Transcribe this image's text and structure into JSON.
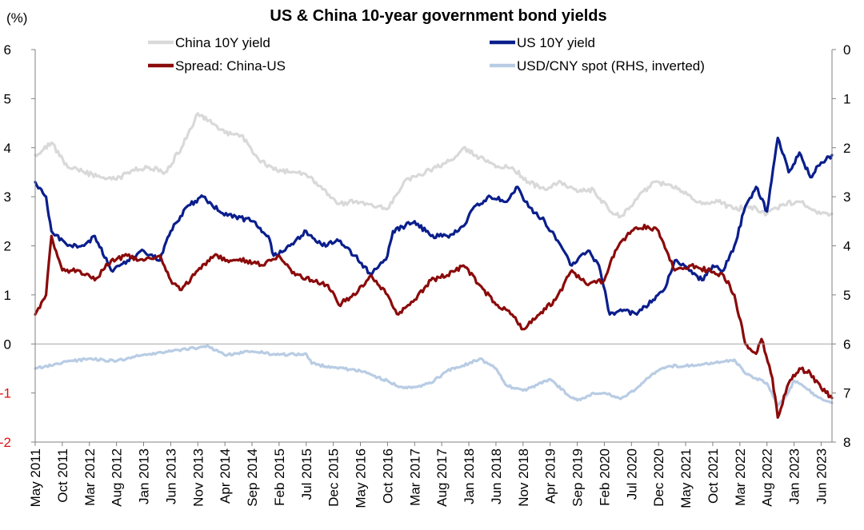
{
  "chart_data": {
    "type": "line",
    "title": "US & China 10-year government bond yields",
    "ylabel": "(%)",
    "ylim": [
      -2,
      6
    ],
    "y_ticks": [
      6,
      5,
      4,
      3,
      2,
      1,
      0,
      -1,
      -2
    ],
    "y_tick_labels": [
      "6",
      "5",
      "4",
      "3",
      "2",
      "1",
      "0",
      "-1",
      "-2"
    ],
    "y2lim": [
      0,
      8
    ],
    "y2_inverted": true,
    "y2_ticks": [
      0,
      1,
      2,
      3,
      4,
      5,
      6,
      7,
      8
    ],
    "y2_tick_labels": [
      "0",
      "1",
      "2",
      "3",
      "4",
      "5",
      "6",
      "7",
      "8"
    ],
    "xlim": [
      "2011-05",
      "2023-08"
    ],
    "x_ticks": [
      "2011-05",
      "2011-10",
      "2012-03",
      "2012-08",
      "2013-01",
      "2013-06",
      "2013-11",
      "2014-04",
      "2014-09",
      "2015-02",
      "2015-07",
      "2015-12",
      "2016-05",
      "2016-10",
      "2017-03",
      "2017-08",
      "2018-01",
      "2018-06",
      "2018-11",
      "2019-04",
      "2019-09",
      "2020-02",
      "2020-07",
      "2020-12",
      "2021-05",
      "2021-10",
      "2022-03",
      "2022-08",
      "2023-01",
      "2023-06"
    ],
    "x_tick_labels": [
      "May 2011",
      "Oct 2011",
      "Mar 2012",
      "Aug 2012",
      "Jan 2013",
      "Jun 2013",
      "Nov 2013",
      "Apr 2014",
      "Sep 2014",
      "Feb 2015",
      "Jul 2015",
      "Dec 2015",
      "May 2016",
      "Oct 2016",
      "Mar 2017",
      "Aug 2017",
      "Jan 2018",
      "Jun 2018",
      "Nov 2018",
      "Apr 2019",
      "Sep 2019",
      "Feb 2020",
      "Jul 2020",
      "Dec 2020",
      "May 2021",
      "Oct 2021",
      "Mar 2022",
      "Aug 2022",
      "Jan 2023",
      "Jun 2023"
    ],
    "grid": false,
    "legend": {
      "placement": "top",
      "columns": 2
    },
    "series": [
      {
        "name": "China 10Y yield",
        "axis": "left",
        "color": "#d9d9d9",
        "points": [
          [
            "2011-05",
            3.85
          ],
          [
            "2011-08",
            4.1
          ],
          [
            "2011-11",
            3.6
          ],
          [
            "2012-02",
            3.5
          ],
          [
            "2012-05",
            3.4
          ],
          [
            "2012-08",
            3.35
          ],
          [
            "2012-11",
            3.55
          ],
          [
            "2013-02",
            3.6
          ],
          [
            "2013-05",
            3.5
          ],
          [
            "2013-08",
            4.0
          ],
          [
            "2013-11",
            4.7
          ],
          [
            "2014-01",
            4.55
          ],
          [
            "2014-04",
            4.3
          ],
          [
            "2014-07",
            4.25
          ],
          [
            "2014-10",
            3.8
          ],
          [
            "2015-01",
            3.55
          ],
          [
            "2015-04",
            3.5
          ],
          [
            "2015-07",
            3.45
          ],
          [
            "2015-10",
            3.15
          ],
          [
            "2016-01",
            2.85
          ],
          [
            "2016-04",
            2.9
          ],
          [
            "2016-07",
            2.85
          ],
          [
            "2016-10",
            2.75
          ],
          [
            "2017-01",
            3.3
          ],
          [
            "2017-04",
            3.45
          ],
          [
            "2017-07",
            3.6
          ],
          [
            "2017-10",
            3.75
          ],
          [
            "2017-12",
            4.0
          ],
          [
            "2018-03",
            3.8
          ],
          [
            "2018-06",
            3.6
          ],
          [
            "2018-09",
            3.6
          ],
          [
            "2018-12",
            3.3
          ],
          [
            "2019-03",
            3.15
          ],
          [
            "2019-06",
            3.3
          ],
          [
            "2019-09",
            3.1
          ],
          [
            "2019-12",
            3.15
          ],
          [
            "2020-03",
            2.7
          ],
          [
            "2020-05",
            2.6
          ],
          [
            "2020-08",
            2.95
          ],
          [
            "2020-11",
            3.3
          ],
          [
            "2021-02",
            3.25
          ],
          [
            "2021-05",
            3.1
          ],
          [
            "2021-08",
            2.85
          ],
          [
            "2021-11",
            2.9
          ],
          [
            "2022-02",
            2.75
          ],
          [
            "2022-05",
            2.8
          ],
          [
            "2022-08",
            2.65
          ],
          [
            "2022-11",
            2.85
          ],
          [
            "2023-02",
            2.9
          ],
          [
            "2023-05",
            2.7
          ],
          [
            "2023-08",
            2.65
          ]
        ]
      },
      {
        "name": "US 10Y yield",
        "axis": "left",
        "color": "#0a1e8c",
        "points": [
          [
            "2011-05",
            3.3
          ],
          [
            "2011-07",
            3.0
          ],
          [
            "2011-08",
            2.3
          ],
          [
            "2011-11",
            2.0
          ],
          [
            "2012-02",
            2.0
          ],
          [
            "2012-04",
            2.2
          ],
          [
            "2012-07",
            1.5
          ],
          [
            "2012-10",
            1.7
          ],
          [
            "2013-01",
            1.9
          ],
          [
            "2013-04",
            1.7
          ],
          [
            "2013-06",
            2.3
          ],
          [
            "2013-09",
            2.8
          ],
          [
            "2013-12",
            3.0
          ],
          [
            "2014-03",
            2.7
          ],
          [
            "2014-06",
            2.6
          ],
          [
            "2014-09",
            2.5
          ],
          [
            "2014-12",
            2.2
          ],
          [
            "2015-01",
            1.8
          ],
          [
            "2015-04",
            2.0
          ],
          [
            "2015-07",
            2.3
          ],
          [
            "2015-10",
            2.0
          ],
          [
            "2016-01",
            2.1
          ],
          [
            "2016-04",
            1.8
          ],
          [
            "2016-07",
            1.4
          ],
          [
            "2016-10",
            1.8
          ],
          [
            "2016-11",
            2.3
          ],
          [
            "2017-03",
            2.5
          ],
          [
            "2017-06",
            2.2
          ],
          [
            "2017-09",
            2.2
          ],
          [
            "2017-12",
            2.4
          ],
          [
            "2018-02",
            2.8
          ],
          [
            "2018-05",
            3.0
          ],
          [
            "2018-08",
            2.9
          ],
          [
            "2018-10",
            3.2
          ],
          [
            "2018-12",
            2.8
          ],
          [
            "2019-03",
            2.5
          ],
          [
            "2019-06",
            2.0
          ],
          [
            "2019-08",
            1.6
          ],
          [
            "2019-11",
            1.9
          ],
          [
            "2020-01",
            1.6
          ],
          [
            "2020-03",
            0.6
          ],
          [
            "2020-05",
            0.7
          ],
          [
            "2020-08",
            0.6
          ],
          [
            "2020-11",
            0.9
          ],
          [
            "2021-01",
            1.1
          ],
          [
            "2021-03",
            1.7
          ],
          [
            "2021-06",
            1.5
          ],
          [
            "2021-08",
            1.3
          ],
          [
            "2021-10",
            1.6
          ],
          [
            "2021-12",
            1.5
          ],
          [
            "2022-02",
            2.0
          ],
          [
            "2022-04",
            2.8
          ],
          [
            "2022-06",
            3.2
          ],
          [
            "2022-08",
            2.7
          ],
          [
            "2022-10",
            4.2
          ],
          [
            "2022-12",
            3.5
          ],
          [
            "2023-02",
            3.9
          ],
          [
            "2023-04",
            3.4
          ],
          [
            "2023-06",
            3.7
          ],
          [
            "2023-08",
            3.85
          ]
        ]
      },
      {
        "name": "Spread: China-US",
        "axis": "left",
        "color": "#8b0a0a",
        "points": [
          [
            "2011-05",
            0.6
          ],
          [
            "2011-07",
            1.0
          ],
          [
            "2011-08",
            2.2
          ],
          [
            "2011-10",
            1.5
          ],
          [
            "2012-01",
            1.5
          ],
          [
            "2012-04",
            1.3
          ],
          [
            "2012-07",
            1.7
          ],
          [
            "2012-10",
            1.8
          ],
          [
            "2013-01",
            1.7
          ],
          [
            "2013-04",
            1.8
          ],
          [
            "2013-06",
            1.3
          ],
          [
            "2013-08",
            1.1
          ],
          [
            "2013-11",
            1.5
          ],
          [
            "2014-02",
            1.8
          ],
          [
            "2014-05",
            1.7
          ],
          [
            "2014-08",
            1.7
          ],
          [
            "2014-11",
            1.6
          ],
          [
            "2015-02",
            1.8
          ],
          [
            "2015-05",
            1.4
          ],
          [
            "2015-08",
            1.3
          ],
          [
            "2015-11",
            1.2
          ],
          [
            "2016-01",
            0.8
          ],
          [
            "2016-04",
            1.0
          ],
          [
            "2016-07",
            1.4
          ],
          [
            "2016-10",
            1.0
          ],
          [
            "2016-12",
            0.6
          ],
          [
            "2017-03",
            0.9
          ],
          [
            "2017-06",
            1.3
          ],
          [
            "2017-09",
            1.4
          ],
          [
            "2017-12",
            1.6
          ],
          [
            "2018-03",
            1.2
          ],
          [
            "2018-06",
            0.8
          ],
          [
            "2018-09",
            0.6
          ],
          [
            "2018-11",
            0.3
          ],
          [
            "2019-02",
            0.6
          ],
          [
            "2019-05",
            0.9
          ],
          [
            "2019-08",
            1.5
          ],
          [
            "2019-11",
            1.2
          ],
          [
            "2020-02",
            1.3
          ],
          [
            "2020-04",
            1.9
          ],
          [
            "2020-07",
            2.3
          ],
          [
            "2020-10",
            2.4
          ],
          [
            "2020-12",
            2.3
          ],
          [
            "2021-03",
            1.5
          ],
          [
            "2021-06",
            1.6
          ],
          [
            "2021-09",
            1.5
          ],
          [
            "2021-12",
            1.4
          ],
          [
            "2022-02",
            1.0
          ],
          [
            "2022-04",
            0.0
          ],
          [
            "2022-06",
            -0.2
          ],
          [
            "2022-07",
            0.1
          ],
          [
            "2022-09",
            -0.7
          ],
          [
            "2022-10",
            -1.5
          ],
          [
            "2022-12",
            -0.8
          ],
          [
            "2023-02",
            -0.5
          ],
          [
            "2023-04",
            -0.6
          ],
          [
            "2023-06",
            -0.9
          ],
          [
            "2023-08",
            -1.1
          ]
        ]
      },
      {
        "name": "USD/CNY spot (RHS, inverted)",
        "axis": "right",
        "color": "#b8cce4",
        "points": [
          [
            "2011-05",
            6.5
          ],
          [
            "2011-10",
            6.38
          ],
          [
            "2012-03",
            6.3
          ],
          [
            "2012-08",
            6.35
          ],
          [
            "2013-01",
            6.22
          ],
          [
            "2013-06",
            6.15
          ],
          [
            "2013-11",
            6.08
          ],
          [
            "2014-01",
            6.05
          ],
          [
            "2014-04",
            6.23
          ],
          [
            "2014-09",
            6.15
          ],
          [
            "2015-02",
            6.22
          ],
          [
            "2015-07",
            6.2
          ],
          [
            "2015-08",
            6.4
          ],
          [
            "2015-12",
            6.48
          ],
          [
            "2016-05",
            6.55
          ],
          [
            "2016-10",
            6.75
          ],
          [
            "2017-01",
            6.9
          ],
          [
            "2017-03",
            6.88
          ],
          [
            "2017-06",
            6.8
          ],
          [
            "2017-09",
            6.55
          ],
          [
            "2018-01",
            6.4
          ],
          [
            "2018-03",
            6.3
          ],
          [
            "2018-06",
            6.5
          ],
          [
            "2018-08",
            6.85
          ],
          [
            "2018-11",
            6.95
          ],
          [
            "2019-04",
            6.72
          ],
          [
            "2019-08",
            7.1
          ],
          [
            "2019-09",
            7.15
          ],
          [
            "2019-12",
            7.0
          ],
          [
            "2020-02",
            7.0
          ],
          [
            "2020-05",
            7.12
          ],
          [
            "2020-08",
            6.9
          ],
          [
            "2020-11",
            6.6
          ],
          [
            "2021-02",
            6.45
          ],
          [
            "2021-05",
            6.45
          ],
          [
            "2021-10",
            6.4
          ],
          [
            "2022-02",
            6.32
          ],
          [
            "2022-04",
            6.6
          ],
          [
            "2022-06",
            6.7
          ],
          [
            "2022-08",
            6.8
          ],
          [
            "2022-10",
            7.25
          ],
          [
            "2022-12",
            6.98
          ],
          [
            "2023-01",
            6.75
          ],
          [
            "2023-03",
            6.88
          ],
          [
            "2023-05",
            7.05
          ],
          [
            "2023-08",
            7.2
          ]
        ]
      }
    ]
  }
}
